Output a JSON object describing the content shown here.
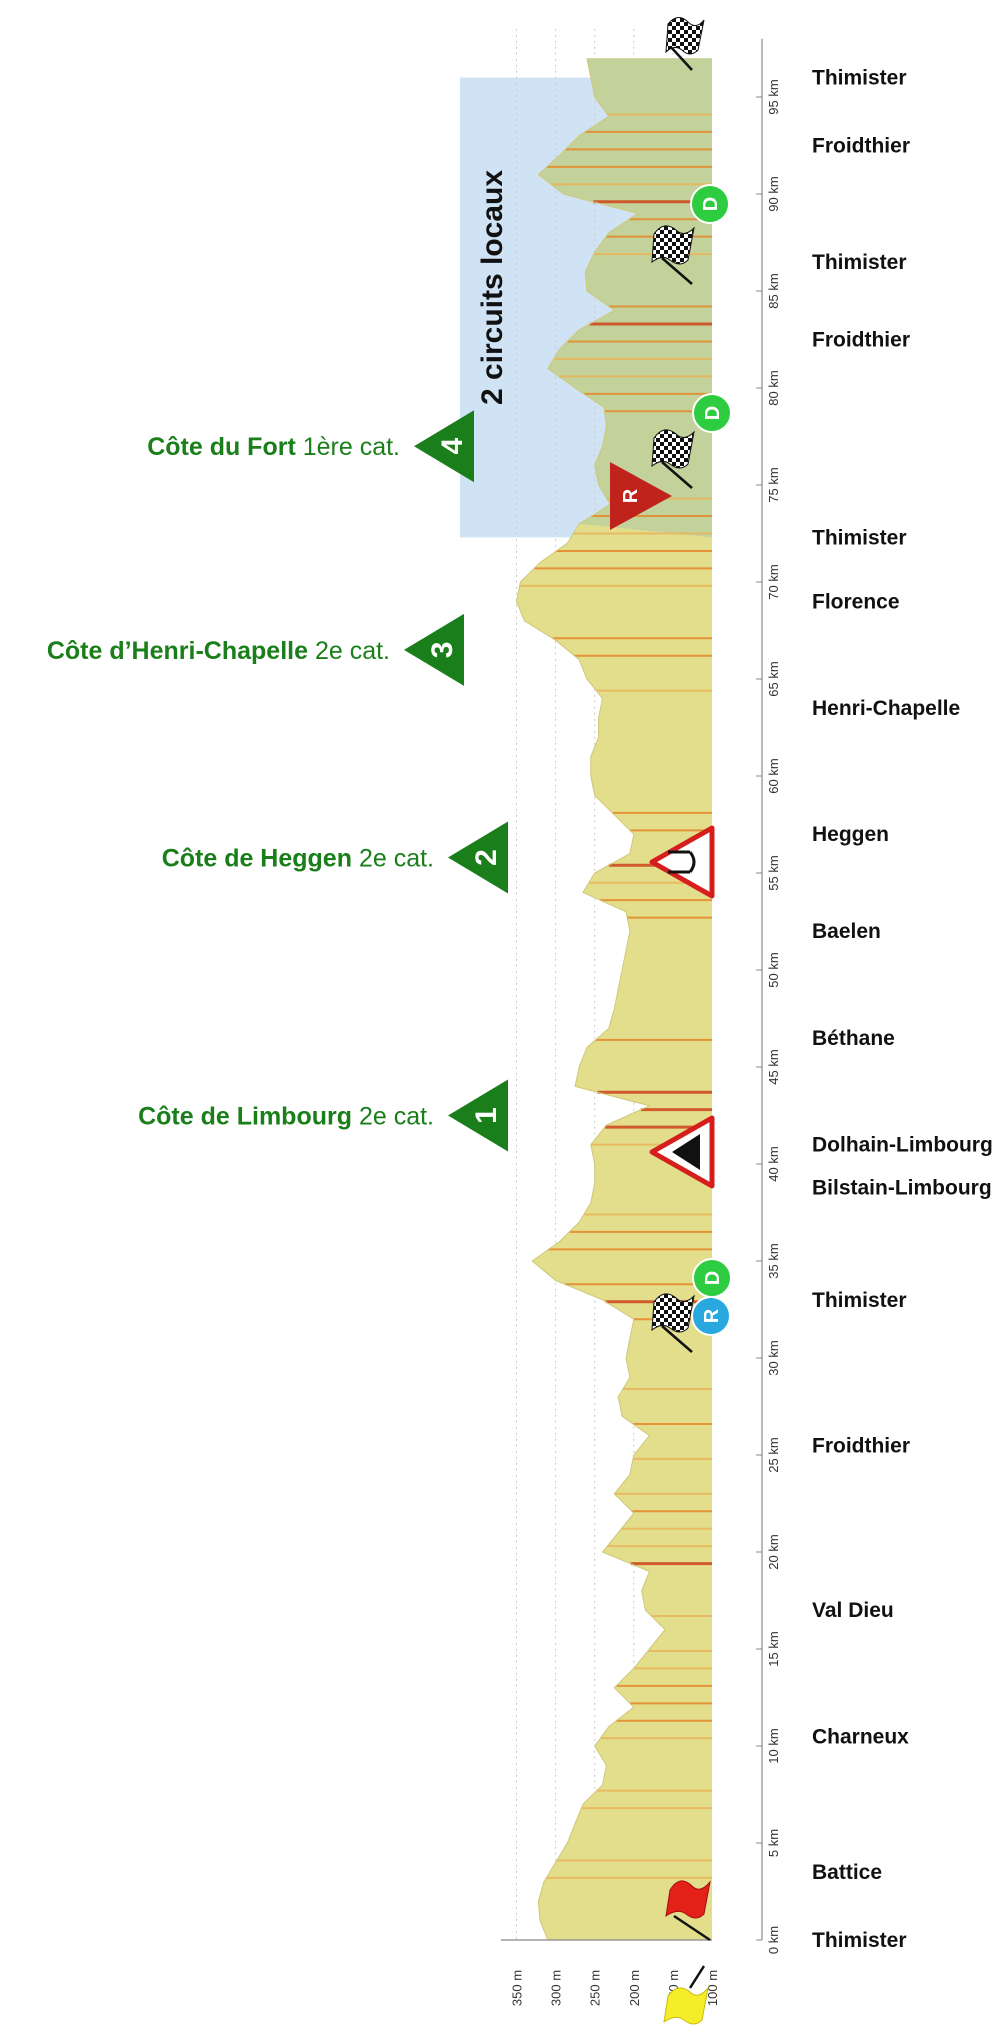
{
  "chart_data": {
    "type": "area",
    "title": "",
    "orientation": "vertical",
    "x_axis": {
      "unit": "km",
      "range": [
        0,
        98
      ],
      "ticks": [
        0,
        5,
        10,
        15,
        20,
        25,
        30,
        35,
        40,
        45,
        50,
        55,
        60,
        65,
        70,
        75,
        80,
        85,
        90,
        95
      ],
      "tick_labels": [
        "0 km",
        "5 km",
        "10 km",
        "15 km",
        "20 km",
        "25 km",
        "30 km",
        "35 km",
        "40 km",
        "45 km",
        "50 km",
        "55 km",
        "60 km",
        "65 km",
        "70 km",
        "75 km",
        "80 km",
        "85 km",
        "90 km",
        "95 km"
      ]
    },
    "y_axis": {
      "unit": "m",
      "range": [
        100,
        370
      ],
      "ticks": [
        100,
        150,
        200,
        250,
        300,
        350
      ],
      "tick_labels": [
        "100 m",
        "150 m",
        "200 m",
        "250 m",
        "300 m",
        "350 m"
      ]
    },
    "grid": true,
    "profile": {
      "km": [
        0,
        1,
        2,
        3,
        4,
        5,
        6,
        7,
        8,
        9,
        10,
        11,
        12,
        13,
        14,
        15,
        16,
        17,
        18,
        19,
        20,
        21,
        22,
        23,
        24,
        25,
        26,
        27,
        28,
        29,
        30,
        31,
        32,
        33,
        34,
        35,
        36,
        37,
        38,
        39,
        40,
        41,
        42,
        43,
        44,
        45,
        46,
        47,
        48,
        49,
        50,
        51,
        52,
        53,
        54,
        55,
        56,
        57,
        58,
        59,
        60,
        61,
        62,
        63,
        64,
        65,
        66,
        67,
        68,
        69,
        70,
        71,
        72,
        73,
        74,
        75,
        76,
        77,
        78,
        79,
        80,
        81,
        82,
        83,
        84,
        85,
        86,
        87,
        88,
        89,
        90,
        91,
        92,
        93,
        94,
        95,
        96,
        97
      ],
      "alt": [
        310,
        320,
        322,
        315,
        300,
        285,
        275,
        265,
        240,
        235,
        250,
        232,
        200,
        225,
        200,
        180,
        160,
        185,
        190,
        180,
        240,
        220,
        200,
        225,
        205,
        200,
        180,
        215,
        220,
        205,
        210,
        205,
        200,
        240,
        300,
        330,
        295,
        270,
        255,
        250,
        250,
        255,
        235,
        180,
        275,
        270,
        260,
        232,
        225,
        220,
        215,
        210,
        205,
        210,
        265,
        250,
        205,
        200,
        225,
        250,
        255,
        255,
        245,
        245,
        240,
        260,
        270,
        300,
        340,
        350,
        345,
        320,
        285,
        270,
        230,
        245,
        250,
        240,
        235,
        238,
        275,
        310,
        295,
        270,
        225,
        260,
        262,
        250,
        232,
        195,
        290,
        322,
        295,
        270,
        232,
        250,
        255,
        260
      ]
    },
    "places": [
      {
        "km": 0,
        "name": "Thimister"
      },
      {
        "km": 3.5,
        "name": "Battice"
      },
      {
        "km": 10.5,
        "name": "Charneux"
      },
      {
        "km": 17,
        "name": "Val Dieu"
      },
      {
        "km": 25.5,
        "name": "Froidthier"
      },
      {
        "km": 33,
        "name": "Thimister"
      },
      {
        "km": 38.8,
        "name": "Bilstain-Limbourg"
      },
      {
        "km": 41,
        "name": "Dolhain-Limbourg"
      },
      {
        "km": 46.5,
        "name": "Béthane"
      },
      {
        "km": 52,
        "name": "Baelen"
      },
      {
        "km": 57,
        "name": "Heggen"
      },
      {
        "km": 63.5,
        "name": "Henri-Chapelle"
      },
      {
        "km": 69,
        "name": "Florence"
      },
      {
        "km": 72.3,
        "name": "Thimister"
      },
      {
        "km": 82.5,
        "name": "Froidthier"
      },
      {
        "km": 86.5,
        "name": "Thimister"
      },
      {
        "km": 92.5,
        "name": "Froidthier"
      },
      {
        "km": 96,
        "name": "Thimister"
      }
    ],
    "climbs": [
      {
        "number": "1",
        "name": "Côte de Limbourg",
        "category": "2e cat.",
        "km": 42.5
      },
      {
        "number": "2",
        "name": "Côte de Heggen",
        "category": "2e cat.",
        "km": 55.8
      },
      {
        "number": "3",
        "name": "Côte d’Henri-Chapelle",
        "category": "2e cat.",
        "km": 66.5
      },
      {
        "number": "4",
        "name": "Côte du Fort",
        "category": "1ère cat.",
        "km": 77
      }
    ],
    "circuit_zone": {
      "label": "2 circuits locaux",
      "km_start": 72.3,
      "km_end": 96
    }
  }
}
